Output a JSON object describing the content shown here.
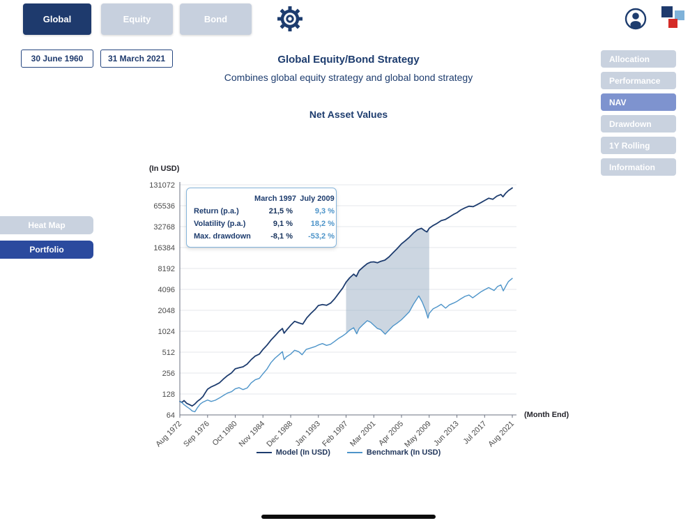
{
  "colors": {
    "navy": "#1d3c6e",
    "active_tab_bg": "#1e3a6d",
    "inactive_tab_bg": "#c7d0de",
    "sidebar_inactive_bg": "#c9d2df",
    "nav_active_bg": "#7e93cf",
    "portfolio_bg": "#2b4a9e",
    "model_line": "#1d3c6e",
    "benchmark_line": "#4d94c9",
    "highlight_fill": "#8fa3bd",
    "logo_red": "#d42b27",
    "logo_light_blue": "#7fb2d9"
  },
  "header": {
    "tabs": [
      {
        "label": "Global",
        "active": true
      },
      {
        "label": "Equity",
        "active": false
      },
      {
        "label": "Bond",
        "active": false
      }
    ],
    "icons": {
      "settings": "gear",
      "profile": "person-circle",
      "logo": "brand-squares"
    }
  },
  "dates": {
    "start": "30 June 1960",
    "end": "31 March 2021"
  },
  "titles": {
    "main": "Global Equity/Bond Strategy",
    "subtitle": "Combines global equity strategy and global bond strategy",
    "chart": "Net Asset Values"
  },
  "sidebar_right": {
    "items": [
      {
        "label": "Allocation",
        "active": false
      },
      {
        "label": "Performance",
        "active": false
      },
      {
        "label": "NAV",
        "active": true
      },
      {
        "label": "Drawdown",
        "active": false
      },
      {
        "label": "1Y Rolling",
        "active": false
      },
      {
        "label": "Information",
        "active": false
      }
    ]
  },
  "sidebar_left": {
    "items": [
      {
        "label": "Heat Map",
        "active": false
      },
      {
        "label": "Portfolio",
        "active": true
      }
    ]
  },
  "tooltip": {
    "columns": [
      "March 1997",
      "July 2009"
    ],
    "rows": [
      {
        "label": "Return (p.a.)",
        "values": [
          "21,5 %",
          "9,3 %"
        ]
      },
      {
        "label": "Volatility (p.a.)",
        "values": [
          "9,1 %",
          "18,2 %"
        ]
      },
      {
        "label": "Max. drawdown",
        "values": [
          "-8,1 %",
          "-53,2 %"
        ]
      }
    ]
  },
  "chart_data": {
    "type": "line",
    "title": "Net Asset Values",
    "y_axis_label": "(In USD)",
    "x_axis_label": "(Month End)",
    "y_scale": "log2",
    "ylim": [
      64,
      131072
    ],
    "grid": "horizontal",
    "legend_position": "bottom",
    "y_ticks": [
      64,
      128,
      256,
      512,
      1024,
      2048,
      4096,
      8192,
      16384,
      32768,
      65536,
      131072
    ],
    "x_ticks": [
      "Aug 1972",
      "Sep 1976",
      "Oct 1980",
      "Nov 1984",
      "Dec 1988",
      "Jan 1993",
      "Feb 1997",
      "Mar 2001",
      "Apr 2005",
      "May 2009",
      "Jun 2013",
      "Jul 2017",
      "Aug 2021"
    ],
    "x_tick_years": [
      1972.58,
      1976.67,
      1980.75,
      1984.83,
      1988.92,
      1993.0,
      1997.08,
      2001.17,
      2005.25,
      2009.33,
      2013.42,
      2017.5,
      2021.58
    ],
    "highlight_fill": "#8fa3bd",
    "highlight_range": {
      "from": 1997.08,
      "to": 2009.33,
      "from_label": "March 1997",
      "to_label": "July 2009"
    },
    "legend": [
      {
        "name": "Model (In USD)",
        "color": "#1d3c6e"
      },
      {
        "name": "Benchmark (In USD)",
        "color": "#4d94c9"
      }
    ],
    "series": [
      {
        "name": "Model (In USD)",
        "color": "#1d3c6e",
        "points": [
          [
            1972.58,
            100
          ],
          [
            1972.9,
            97
          ],
          [
            1973.2,
            103
          ],
          [
            1973.6,
            94
          ],
          [
            1974.0,
            90
          ],
          [
            1974.4,
            86
          ],
          [
            1974.8,
            92
          ],
          [
            1975.2,
            101
          ],
          [
            1975.6,
            108
          ],
          [
            1976.0,
            118
          ],
          [
            1976.3,
            132
          ],
          [
            1976.67,
            150
          ],
          [
            1977.2,
            162
          ],
          [
            1977.8,
            172
          ],
          [
            1978.4,
            185
          ],
          [
            1979.0,
            210
          ],
          [
            1979.6,
            235
          ],
          [
            1980.2,
            258
          ],
          [
            1980.75,
            295
          ],
          [
            1981.3,
            305
          ],
          [
            1981.9,
            315
          ],
          [
            1982.5,
            345
          ],
          [
            1983.1,
            400
          ],
          [
            1983.7,
            450
          ],
          [
            1984.3,
            480
          ],
          [
            1984.83,
            560
          ],
          [
            1985.4,
            640
          ],
          [
            1986.0,
            760
          ],
          [
            1986.6,
            880
          ],
          [
            1987.2,
            1020
          ],
          [
            1987.7,
            1120
          ],
          [
            1987.95,
            960
          ],
          [
            1988.3,
            1060
          ],
          [
            1988.92,
            1250
          ],
          [
            1989.5,
            1420
          ],
          [
            1990.1,
            1350
          ],
          [
            1990.7,
            1300
          ],
          [
            1991.3,
            1600
          ],
          [
            1991.9,
            1850
          ],
          [
            1992.5,
            2100
          ],
          [
            1993.0,
            2400
          ],
          [
            1993.6,
            2480
          ],
          [
            1994.2,
            2420
          ],
          [
            1994.8,
            2600
          ],
          [
            1995.4,
            3000
          ],
          [
            1996.0,
            3600
          ],
          [
            1996.6,
            4300
          ],
          [
            1997.08,
            5200
          ],
          [
            1997.6,
            6000
          ],
          [
            1998.2,
            6800
          ],
          [
            1998.6,
            6300
          ],
          [
            1999.0,
            7600
          ],
          [
            1999.6,
            8600
          ],
          [
            2000.2,
            9600
          ],
          [
            2000.7,
            10100
          ],
          [
            2001.17,
            10200
          ],
          [
            2001.7,
            9900
          ],
          [
            2002.2,
            10400
          ],
          [
            2002.8,
            10800
          ],
          [
            2003.4,
            12000
          ],
          [
            2004.0,
            13800
          ],
          [
            2004.6,
            15800
          ],
          [
            2005.25,
            18500
          ],
          [
            2005.8,
            20500
          ],
          [
            2006.4,
            23000
          ],
          [
            2007.0,
            26500
          ],
          [
            2007.6,
            29500
          ],
          [
            2008.2,
            31000
          ],
          [
            2008.7,
            28500
          ],
          [
            2009.0,
            27500
          ],
          [
            2009.33,
            31000
          ],
          [
            2009.9,
            34000
          ],
          [
            2010.5,
            36500
          ],
          [
            2011.1,
            40000
          ],
          [
            2011.7,
            41500
          ],
          [
            2012.3,
            45000
          ],
          [
            2012.9,
            49000
          ],
          [
            2013.42,
            52000
          ],
          [
            2014.0,
            57000
          ],
          [
            2014.6,
            61000
          ],
          [
            2015.2,
            64500
          ],
          [
            2015.8,
            63500
          ],
          [
            2016.4,
            68000
          ],
          [
            2017.0,
            73000
          ],
          [
            2017.5,
            78000
          ],
          [
            2018.1,
            84000
          ],
          [
            2018.7,
            81000
          ],
          [
            2019.3,
            90000
          ],
          [
            2019.9,
            95000
          ],
          [
            2020.2,
            88000
          ],
          [
            2020.6,
            99000
          ],
          [
            2021.0,
            108000
          ],
          [
            2021.58,
            118000
          ]
        ]
      },
      {
        "name": "Benchmark (In USD)",
        "color": "#4d94c9",
        "points": [
          [
            1972.58,
            100
          ],
          [
            1972.9,
            96
          ],
          [
            1973.2,
            90
          ],
          [
            1973.6,
            84
          ],
          [
            1974.0,
            79
          ],
          [
            1974.4,
            73
          ],
          [
            1974.8,
            71
          ],
          [
            1975.2,
            82
          ],
          [
            1975.6,
            92
          ],
          [
            1976.0,
            98
          ],
          [
            1976.67,
            105
          ],
          [
            1977.2,
            100
          ],
          [
            1977.8,
            104
          ],
          [
            1978.4,
            112
          ],
          [
            1979.0,
            122
          ],
          [
            1979.6,
            132
          ],
          [
            1980.2,
            138
          ],
          [
            1980.75,
            152
          ],
          [
            1981.3,
            158
          ],
          [
            1981.9,
            148
          ],
          [
            1982.5,
            156
          ],
          [
            1983.1,
            185
          ],
          [
            1983.7,
            205
          ],
          [
            1984.3,
            215
          ],
          [
            1984.83,
            250
          ],
          [
            1985.4,
            290
          ],
          [
            1986.0,
            360
          ],
          [
            1986.6,
            420
          ],
          [
            1987.2,
            470
          ],
          [
            1987.7,
            520
          ],
          [
            1987.95,
            400
          ],
          [
            1988.3,
            440
          ],
          [
            1988.92,
            480
          ],
          [
            1989.5,
            545
          ],
          [
            1990.1,
            520
          ],
          [
            1990.6,
            470
          ],
          [
            1991.2,
            560
          ],
          [
            1991.9,
            590
          ],
          [
            1992.5,
            615
          ],
          [
            1993.0,
            650
          ],
          [
            1993.6,
            680
          ],
          [
            1994.2,
            640
          ],
          [
            1994.8,
            665
          ],
          [
            1995.4,
            730
          ],
          [
            1996.0,
            810
          ],
          [
            1996.6,
            880
          ],
          [
            1997.08,
            950
          ],
          [
            1997.6,
            1060
          ],
          [
            1998.2,
            1150
          ],
          [
            1998.65,
            940
          ],
          [
            1999.0,
            1120
          ],
          [
            1999.6,
            1280
          ],
          [
            2000.2,
            1450
          ],
          [
            2000.7,
            1380
          ],
          [
            2001.17,
            1250
          ],
          [
            2001.7,
            1120
          ],
          [
            2002.2,
            1080
          ],
          [
            2002.85,
            930
          ],
          [
            2003.4,
            1060
          ],
          [
            2004.0,
            1220
          ],
          [
            2004.6,
            1340
          ],
          [
            2005.25,
            1500
          ],
          [
            2005.8,
            1700
          ],
          [
            2006.4,
            1950
          ],
          [
            2007.0,
            2500
          ],
          [
            2007.8,
            3300
          ],
          [
            2008.3,
            2700
          ],
          [
            2008.8,
            2050
          ],
          [
            2009.15,
            1580
          ],
          [
            2009.33,
            1850
          ],
          [
            2009.9,
            2150
          ],
          [
            2010.5,
            2300
          ],
          [
            2011.1,
            2500
          ],
          [
            2011.75,
            2200
          ],
          [
            2012.3,
            2450
          ],
          [
            2012.9,
            2600
          ],
          [
            2013.42,
            2750
          ],
          [
            2014.0,
            3000
          ],
          [
            2014.6,
            3250
          ],
          [
            2015.2,
            3400
          ],
          [
            2015.75,
            3100
          ],
          [
            2016.4,
            3450
          ],
          [
            2017.0,
            3800
          ],
          [
            2017.5,
            4050
          ],
          [
            2018.1,
            4350
          ],
          [
            2018.9,
            3950
          ],
          [
            2019.4,
            4500
          ],
          [
            2019.9,
            4750
          ],
          [
            2020.25,
            3900
          ],
          [
            2020.7,
            4700
          ],
          [
            2021.0,
            5300
          ],
          [
            2021.58,
            5900
          ]
        ]
      }
    ]
  }
}
